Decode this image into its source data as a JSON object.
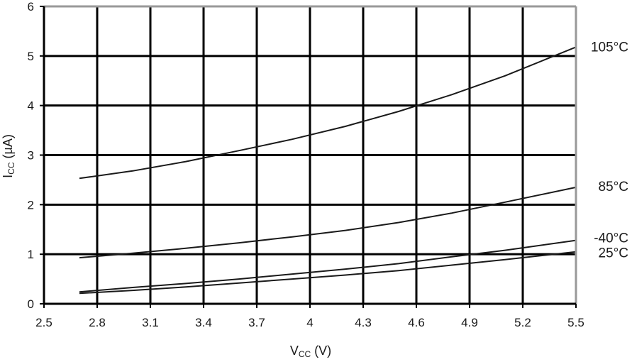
{
  "chart_data": {
    "type": "line",
    "xlabel": {
      "main": "V",
      "sub": "CC",
      "unit": " (V)"
    },
    "ylabel": {
      "main": "I",
      "sub": "CC",
      "unit": " (µA)"
    },
    "xlim": [
      2.5,
      5.5
    ],
    "ylim": [
      0,
      6
    ],
    "x_ticks": [
      "2.5",
      "2.8",
      "3.1",
      "3.4",
      "3.7",
      "4",
      "4.3",
      "4.6",
      "4.9",
      "5.2",
      "5.5"
    ],
    "y_ticks": [
      "0",
      "1",
      "2",
      "3",
      "4",
      "5",
      "6"
    ],
    "grid": true,
    "series": [
      {
        "name": "105°C",
        "x": [
          2.7,
          3.0,
          3.3,
          3.6,
          3.9,
          4.2,
          4.5,
          4.8,
          5.1,
          5.5
        ],
        "y": [
          2.53,
          2.68,
          2.87,
          3.09,
          3.32,
          3.58,
          3.88,
          4.22,
          4.6,
          5.18
        ]
      },
      {
        "name": "85°C",
        "x": [
          2.7,
          3.0,
          3.3,
          3.6,
          3.9,
          4.2,
          4.5,
          4.8,
          5.1,
          5.5
        ],
        "y": [
          0.93,
          1.02,
          1.12,
          1.23,
          1.35,
          1.48,
          1.64,
          1.83,
          2.05,
          2.35
        ]
      },
      {
        "name": "-40°C",
        "x": [
          2.7,
          3.0,
          3.3,
          3.6,
          3.9,
          4.2,
          4.5,
          4.8,
          5.1,
          5.5
        ],
        "y": [
          0.24,
          0.33,
          0.41,
          0.5,
          0.6,
          0.7,
          0.81,
          0.95,
          1.08,
          1.28
        ]
      },
      {
        "name": "25°C",
        "x": [
          2.7,
          3.0,
          3.3,
          3.6,
          3.9,
          4.2,
          4.5,
          4.8,
          5.1,
          5.5
        ],
        "y": [
          0.21,
          0.27,
          0.34,
          0.42,
          0.5,
          0.58,
          0.67,
          0.78,
          0.89,
          1.05
        ]
      }
    ]
  },
  "colors": {
    "grid": "#000000",
    "frame": "#999999",
    "line": "#1a1a1a"
  }
}
